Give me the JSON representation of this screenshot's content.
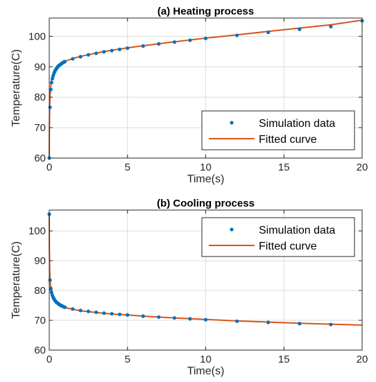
{
  "chart_data": [
    {
      "type": "line",
      "title": "(a) Heating process",
      "xlabel": "Time(s)",
      "ylabel": "Temperature(C)",
      "xlim": [
        0,
        20
      ],
      "ylim": [
        60,
        106
      ],
      "xticks": [
        0,
        5,
        10,
        15,
        20
      ],
      "yticks": [
        60,
        70,
        80,
        90,
        100
      ],
      "grid": true,
      "legend_position": "bottom-right",
      "series": [
        {
          "name": "Simulation data",
          "style": "markers",
          "color": "#0072BD",
          "x": [
            0,
            0.05,
            0.1,
            0.15,
            0.2,
            0.25,
            0.3,
            0.35,
            0.4,
            0.45,
            0.5,
            0.55,
            0.6,
            0.65,
            0.7,
            0.75,
            0.8,
            0.85,
            0.9,
            0.95,
            1.0,
            1.5,
            2.0,
            2.5,
            3.0,
            3.5,
            4.0,
            4.5,
            5.0,
            6.0,
            7.0,
            8.0,
            9.0,
            10.0,
            12.0,
            14.0,
            16.0,
            18.0,
            20.0
          ],
          "y": [
            60.0,
            76.7,
            82.5,
            84.8,
            86.1,
            87.0,
            87.8,
            88.4,
            88.9,
            89.3,
            89.7,
            90.0,
            90.3,
            90.5,
            90.7,
            90.9,
            91.1,
            91.3,
            91.4,
            91.6,
            91.7,
            92.6,
            93.3,
            93.9,
            94.4,
            94.9,
            95.3,
            95.7,
            96.1,
            96.8,
            97.5,
            98.1,
            98.7,
            99.3,
            100.3,
            101.3,
            102.3,
            103.2,
            105.1
          ]
        },
        {
          "name": "Fitted curve",
          "style": "line",
          "color": "#D95319",
          "x": [
            0,
            0.01,
            0.03,
            0.06,
            0.1,
            0.15,
            0.2,
            0.3,
            0.4,
            0.5,
            0.6,
            0.8,
            1.0,
            1.5,
            2.0,
            3.0,
            4.0,
            5.0,
            6.0,
            8.0,
            10.0,
            12.0,
            14.0,
            16.0,
            18.0,
            20.0
          ],
          "y": [
            60.0,
            70.0,
            77.5,
            81.5,
            83.8,
            85.6,
            86.6,
            88.0,
            89.0,
            89.8,
            90.4,
            91.2,
            91.8,
            92.7,
            93.4,
            94.5,
            95.4,
            96.2,
            96.9,
            98.2,
            99.4,
            100.5,
            101.6,
            102.7,
            103.8,
            105.3
          ]
        }
      ]
    },
    {
      "type": "line",
      "title": "(b) Cooling process",
      "xlabel": "Time(s)",
      "ylabel": "Temperature(C)",
      "xlim": [
        0,
        20
      ],
      "ylim": [
        60,
        107
      ],
      "xticks": [
        0,
        5,
        10,
        15,
        20
      ],
      "yticks": [
        60,
        70,
        80,
        90,
        100
      ],
      "grid": true,
      "legend_position": "top-right",
      "series": [
        {
          "name": "Simulation data",
          "style": "markers",
          "color": "#0072BD",
          "x": [
            0,
            0.05,
            0.1,
            0.15,
            0.2,
            0.25,
            0.3,
            0.35,
            0.4,
            0.45,
            0.5,
            0.55,
            0.6,
            0.65,
            0.7,
            0.75,
            0.8,
            0.85,
            0.9,
            0.95,
            1.0,
            1.5,
            2.0,
            2.5,
            3.0,
            3.5,
            4.0,
            4.5,
            5.0,
            6.0,
            7.0,
            8.0,
            9.0,
            10.0,
            12.0,
            14.0,
            16.0,
            18.0
          ],
          "y": [
            105.6,
            83.5,
            80.7,
            79.3,
            78.4,
            77.7,
            77.2,
            76.8,
            76.4,
            76.1,
            75.9,
            75.7,
            75.5,
            75.3,
            75.1,
            75.0,
            74.9,
            74.7,
            74.6,
            74.5,
            74.4,
            73.8,
            73.3,
            73.0,
            72.7,
            72.4,
            72.2,
            72.0,
            71.8,
            71.4,
            71.1,
            70.8,
            70.5,
            70.2,
            69.7,
            69.3,
            68.9,
            68.6
          ]
        },
        {
          "name": "Fitted curve",
          "style": "line",
          "color": "#D95319",
          "x": [
            0,
            0.01,
            0.03,
            0.06,
            0.1,
            0.15,
            0.2,
            0.3,
            0.4,
            0.5,
            0.6,
            0.8,
            1.0,
            1.5,
            2.0,
            3.0,
            4.0,
            5.0,
            6.0,
            8.0,
            10.0,
            12.0,
            14.0,
            16.0,
            18.0,
            20.0
          ],
          "y": [
            105.6,
            94.0,
            86.5,
            82.8,
            80.7,
            79.2,
            78.3,
            77.1,
            76.3,
            75.8,
            75.4,
            74.8,
            74.3,
            73.7,
            73.2,
            72.6,
            72.1,
            71.8,
            71.4,
            70.8,
            70.3,
            69.8,
            69.4,
            69.0,
            68.7,
            68.4
          ]
        }
      ]
    }
  ]
}
